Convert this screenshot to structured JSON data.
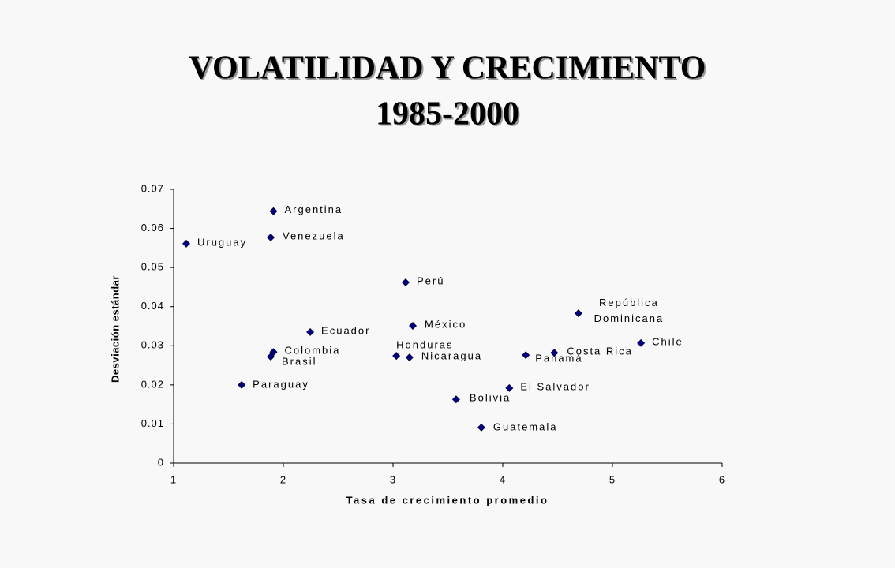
{
  "chart_data": {
    "type": "scatter",
    "title": "VOLATILIDAD Y CRECIMIENTO",
    "subtitle": "1985-2000",
    "x_label": "Tasa de crecimiento promedio",
    "y_label": "Desviación estándar",
    "xlim": [
      1,
      6
    ],
    "xticks": [
      1,
      2,
      3,
      4,
      5,
      6
    ],
    "ylim": [
      0,
      0.07
    ],
    "yticks": [
      0,
      0.01,
      0.02,
      0.03,
      0.04,
      0.05,
      0.06,
      0.07
    ],
    "color": "#000080",
    "labels": [
      "Argentina",
      "Uruguay",
      "Venezuela",
      "Perú",
      "República Dominicana",
      "México",
      "Ecuador",
      "Chile",
      "Colombia",
      "Brasil",
      "Honduras",
      "Nicaragua",
      "Panamá",
      "Costa Rica",
      "Paraguay",
      "El Salvador",
      "Bolivia",
      "Guatemala"
    ],
    "x": [
      1.91,
      1.115,
      1.885,
      3.115,
      4.69,
      3.18,
      2.245,
      5.26,
      1.91,
      1.885,
      3.03,
      3.15,
      4.21,
      4.47,
      1.62,
      4.06,
      3.575,
      3.805
    ],
    "values": [
      0.0644,
      0.0561,
      0.0577,
      0.0462,
      0.0383,
      0.0351,
      0.0335,
      0.0307,
      0.0284,
      0.0272,
      0.0274,
      0.027,
      0.0276,
      0.0282,
      0.02,
      0.0192,
      0.0163,
      0.0091
    ]
  }
}
